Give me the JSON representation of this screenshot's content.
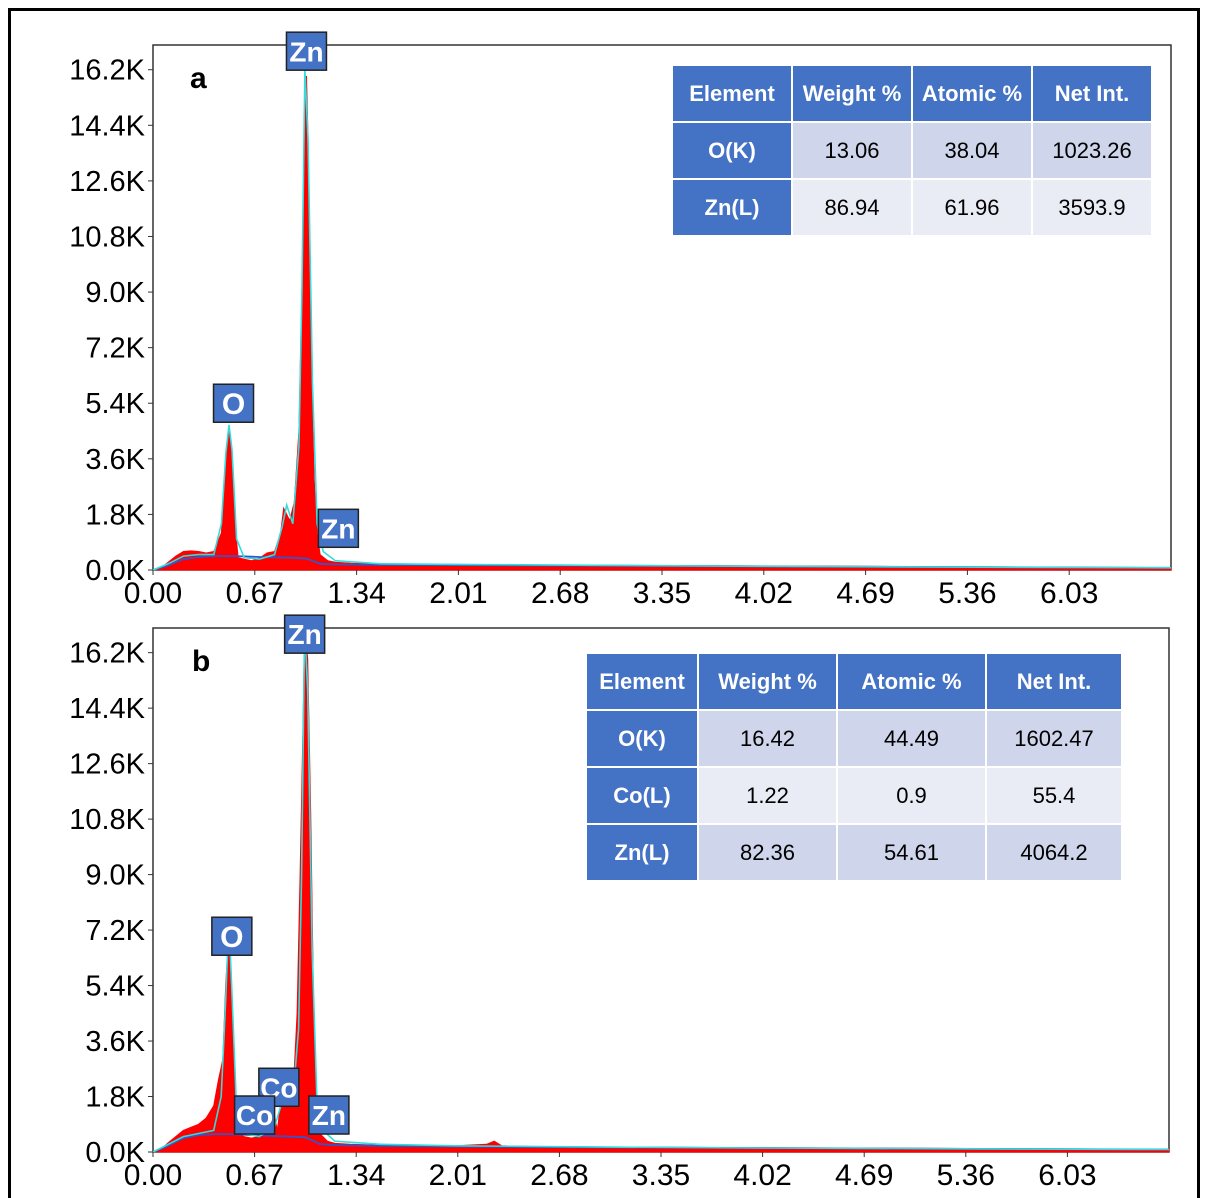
{
  "chart_data": [
    {
      "type": "area",
      "panel": "a",
      "xlabel": "",
      "ylabel": "",
      "x_ticks": [
        "0.00",
        "0.67",
        "1.34",
        "2.01",
        "2.68",
        "3.35",
        "4.02",
        "4.69",
        "5.36",
        "6.03"
      ],
      "y_ticks": [
        "0.0K",
        "1.8K",
        "3.6K",
        "5.4K",
        "7.2K",
        "9.0K",
        "10.8K",
        "12.6K",
        "14.4K",
        "16.2K"
      ],
      "xlim": [
        0.0,
        6.7
      ],
      "ylim": [
        0,
        17000
      ],
      "series": [
        {
          "role": "spectrum",
          "color": "#ff0000",
          "x": [
            0.0,
            0.05,
            0.1,
            0.15,
            0.2,
            0.25,
            0.3,
            0.35,
            0.4,
            0.45,
            0.48,
            0.5,
            0.52,
            0.54,
            0.56,
            0.6,
            0.65,
            0.7,
            0.75,
            0.8,
            0.84,
            0.86,
            0.88,
            0.9,
            0.93,
            0.96,
            0.98,
            1.0,
            1.01,
            1.02,
            1.04,
            1.06,
            1.08,
            1.1,
            1.15,
            1.2,
            1.3,
            1.5,
            2.0,
            2.5,
            3.0,
            3.5,
            4.0,
            4.5,
            5.0,
            5.5,
            6.0,
            6.5,
            6.7
          ],
          "y": [
            0,
            60,
            250,
            450,
            600,
            620,
            600,
            550,
            600,
            1200,
            3500,
            4600,
            3800,
            1500,
            400,
            350,
            300,
            380,
            550,
            600,
            1200,
            2000,
            1800,
            1600,
            2200,
            4500,
            9000,
            15500,
            16000,
            14000,
            7000,
            3000,
            1200,
            500,
            300,
            250,
            220,
            200,
            180,
            160,
            150,
            140,
            130,
            120,
            110,
            100,
            90,
            80,
            70
          ]
        },
        {
          "role": "fit",
          "color": "#33dddd",
          "x": [
            0.0,
            0.1,
            0.2,
            0.3,
            0.4,
            0.45,
            0.48,
            0.5,
            0.52,
            0.55,
            0.6,
            0.7,
            0.8,
            0.85,
            0.88,
            0.92,
            0.96,
            0.98,
            1.0,
            1.02,
            1.05,
            1.08,
            1.12,
            1.2,
            1.5,
            2.0,
            3.0,
            4.0,
            5.0,
            6.0,
            6.7
          ],
          "y": [
            0,
            200,
            450,
            500,
            500,
            1500,
            3800,
            4700,
            3900,
            1000,
            400,
            350,
            500,
            1400,
            2100,
            1500,
            4000,
            9000,
            16200,
            14000,
            6000,
            1500,
            600,
            300,
            200,
            180,
            150,
            120,
            100,
            80,
            70
          ]
        },
        {
          "role": "background",
          "color": "#3355cc",
          "x": [
            0.0,
            0.1,
            0.2,
            0.3,
            0.4,
            0.5,
            0.6,
            0.7,
            0.8,
            0.9,
            1.0,
            1.05,
            1.1,
            1.2,
            1.5,
            2.0,
            3.0,
            4.0,
            5.0,
            6.0,
            6.7
          ],
          "y": [
            0,
            150,
            350,
            420,
            450,
            450,
            440,
            420,
            410,
            400,
            380,
            300,
            200,
            180,
            170,
            160,
            140,
            120,
            100,
            80,
            70
          ]
        }
      ],
      "peak_labels": [
        {
          "text": "Zn",
          "x": 1.01,
          "y": 16800
        },
        {
          "text": "O",
          "x": 0.53,
          "y": 5400
        },
        {
          "text": "Zn",
          "x": 1.22,
          "y": 1350
        }
      ],
      "annotation": "a"
    },
    {
      "type": "area",
      "panel": "b",
      "xlabel": "",
      "ylabel": "",
      "x_ticks": [
        "0.00",
        "0.67",
        "1.34",
        "2.01",
        "2.68",
        "3.35",
        "4.02",
        "4.69",
        "5.36",
        "6.03"
      ],
      "y_ticks": [
        "0.0K",
        "1.8K",
        "3.6K",
        "5.4K",
        "7.2K",
        "9.0K",
        "10.8K",
        "12.6K",
        "14.4K",
        "16.2K"
      ],
      "xlim": [
        0.0,
        6.7
      ],
      "ylim": [
        0,
        17000
      ],
      "series": [
        {
          "role": "spectrum",
          "color": "#ff0000",
          "x": [
            0.0,
            0.05,
            0.1,
            0.15,
            0.2,
            0.25,
            0.3,
            0.35,
            0.4,
            0.43,
            0.46,
            0.48,
            0.5,
            0.52,
            0.54,
            0.56,
            0.6,
            0.65,
            0.7,
            0.75,
            0.78,
            0.8,
            0.82,
            0.85,
            0.88,
            0.9,
            0.93,
            0.95,
            0.97,
            0.99,
            1.0,
            1.02,
            1.04,
            1.06,
            1.08,
            1.1,
            1.15,
            1.2,
            1.3,
            1.5,
            2.0,
            2.2,
            2.25,
            2.3,
            2.5,
            3.0,
            3.5,
            4.0,
            4.5,
            5.0,
            5.5,
            6.0,
            6.5,
            6.7
          ],
          "y": [
            0,
            80,
            300,
            500,
            700,
            800,
            900,
            1100,
            1500,
            2300,
            3000,
            5500,
            7000,
            5000,
            1800,
            600,
            500,
            450,
            500,
            700,
            900,
            1200,
            700,
            1900,
            2000,
            1600,
            2500,
            4500,
            9000,
            14000,
            17000,
            16000,
            11000,
            4500,
            1500,
            600,
            350,
            280,
            250,
            220,
            200,
            250,
            350,
            200,
            180,
            160,
            150,
            140,
            130,
            120,
            110,
            100,
            90,
            80
          ]
        },
        {
          "role": "fit",
          "color": "#33dddd",
          "x": [
            0.0,
            0.1,
            0.2,
            0.3,
            0.4,
            0.45,
            0.48,
            0.5,
            0.52,
            0.55,
            0.6,
            0.7,
            0.8,
            0.85,
            0.88,
            0.92,
            0.96,
            0.98,
            1.0,
            1.02,
            1.05,
            1.08,
            1.12,
            1.2,
            1.5,
            2.0,
            3.0,
            4.0,
            5.0,
            6.0,
            6.7
          ],
          "y": [
            0,
            250,
            500,
            600,
            700,
            1800,
            5000,
            7600,
            5200,
            1500,
            600,
            500,
            800,
            1600,
            2000,
            1600,
            4000,
            9000,
            17000,
            15000,
            6500,
            1800,
            700,
            350,
            250,
            200,
            160,
            130,
            110,
            90,
            80
          ]
        },
        {
          "role": "background",
          "color": "#3355cc",
          "x": [
            0.0,
            0.1,
            0.2,
            0.3,
            0.4,
            0.5,
            0.6,
            0.7,
            0.8,
            0.9,
            1.0,
            1.05,
            1.1,
            1.2,
            1.5,
            2.0,
            3.0,
            4.0,
            5.0,
            6.0,
            6.7
          ],
          "y": [
            0,
            200,
            450,
            550,
            580,
            580,
            560,
            540,
            520,
            500,
            480,
            380,
            260,
            220,
            200,
            180,
            150,
            130,
            110,
            90,
            80
          ]
        }
      ],
      "peak_labels": [
        {
          "text": "Zn",
          "x": 1.0,
          "y": 16800
        },
        {
          "text": "O",
          "x": 0.52,
          "y": 7000
        },
        {
          "text": "Co",
          "x": 0.83,
          "y": 2100
        },
        {
          "text": "Co",
          "x": 0.67,
          "y": 1200
        },
        {
          "text": "Zn",
          "x": 1.16,
          "y": 1200
        }
      ],
      "annotation": "b"
    }
  ],
  "tables": [
    {
      "headers": [
        "Element",
        "Weight %",
        "Atomic %",
        "Net Int."
      ],
      "rows": [
        [
          "O(K)",
          "13.06",
          "38.04",
          "1023.26"
        ],
        [
          "Zn(L)",
          "86.94",
          "61.96",
          "3593.9"
        ]
      ]
    },
    {
      "headers": [
        "Element",
        "Weight %",
        "Atomic %",
        "Net Int."
      ],
      "rows": [
        [
          "O(K)",
          "16.42",
          "44.49",
          "1602.47"
        ],
        [
          "Co(L)",
          "1.22",
          "0.9",
          "55.4"
        ],
        [
          "Zn(L)",
          "82.36",
          "54.61",
          "4064.2"
        ]
      ]
    }
  ],
  "colors": {
    "spectrum": "#ff0000",
    "fit": "#33dddd",
    "background": "#3355cc",
    "label_fill": "#4472c4",
    "label_border": "#222222"
  }
}
